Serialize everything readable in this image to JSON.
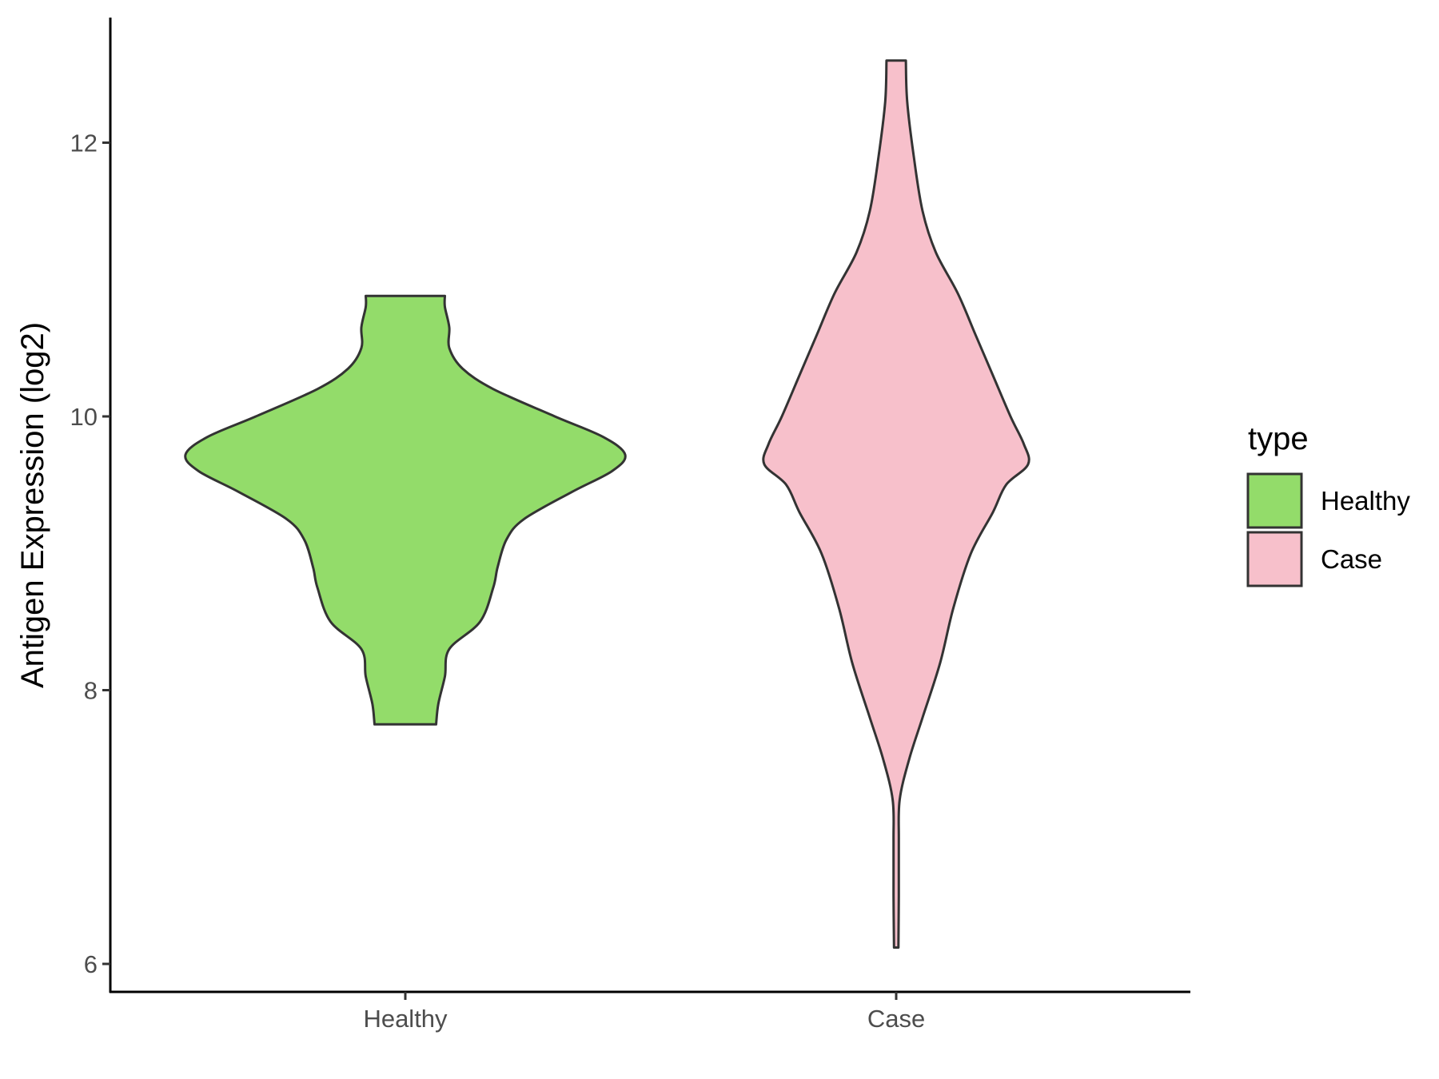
{
  "chart_data": {
    "type": "violin",
    "title": "",
    "xlabel": "",
    "ylabel": "Antigen Expression (log2)",
    "ylim": [
      5.8,
      12.9
    ],
    "yticks": [
      6,
      8,
      10,
      12
    ],
    "ytick_labels": [
      "6",
      "8",
      "10",
      "12"
    ],
    "categories": [
      "Healthy",
      "Case"
    ],
    "grid": false,
    "legend": {
      "title": "type",
      "position": "right",
      "entries": [
        {
          "label": "Healthy",
          "color": "#93dc6a"
        },
        {
          "label": "Case",
          "color": "#f7c0cb"
        }
      ]
    },
    "series": [
      {
        "name": "Healthy",
        "color": "#93dc6a",
        "min": 7.75,
        "max": 10.88,
        "profile": [
          [
            7.75,
            0.07
          ],
          [
            7.9,
            0.075
          ],
          [
            8.1,
            0.09
          ],
          [
            8.3,
            0.1
          ],
          [
            8.5,
            0.17
          ],
          [
            8.75,
            0.2
          ],
          [
            8.9,
            0.21
          ],
          [
            9.1,
            0.23
          ],
          [
            9.25,
            0.27
          ],
          [
            9.45,
            0.38
          ],
          [
            9.6,
            0.47
          ],
          [
            9.72,
            0.5
          ],
          [
            9.85,
            0.45
          ],
          [
            10.0,
            0.34
          ],
          [
            10.2,
            0.2
          ],
          [
            10.35,
            0.13
          ],
          [
            10.5,
            0.1
          ],
          [
            10.65,
            0.1
          ],
          [
            10.8,
            0.09
          ],
          [
            10.88,
            0.09
          ]
        ]
      },
      {
        "name": "Case",
        "color": "#f7c0cb",
        "min": 6.12,
        "max": 12.6,
        "profile": [
          [
            6.12,
            0.005
          ],
          [
            6.5,
            0.006
          ],
          [
            6.9,
            0.006
          ],
          [
            7.2,
            0.008
          ],
          [
            7.5,
            0.03
          ],
          [
            7.8,
            0.06
          ],
          [
            8.2,
            0.1
          ],
          [
            8.6,
            0.13
          ],
          [
            9.0,
            0.17
          ],
          [
            9.3,
            0.22
          ],
          [
            9.5,
            0.25
          ],
          [
            9.65,
            0.3
          ],
          [
            9.8,
            0.29
          ],
          [
            10.0,
            0.26
          ],
          [
            10.3,
            0.22
          ],
          [
            10.6,
            0.18
          ],
          [
            10.9,
            0.14
          ],
          [
            11.2,
            0.09
          ],
          [
            11.5,
            0.06
          ],
          [
            11.9,
            0.04
          ],
          [
            12.3,
            0.025
          ],
          [
            12.6,
            0.022
          ]
        ]
      }
    ]
  }
}
